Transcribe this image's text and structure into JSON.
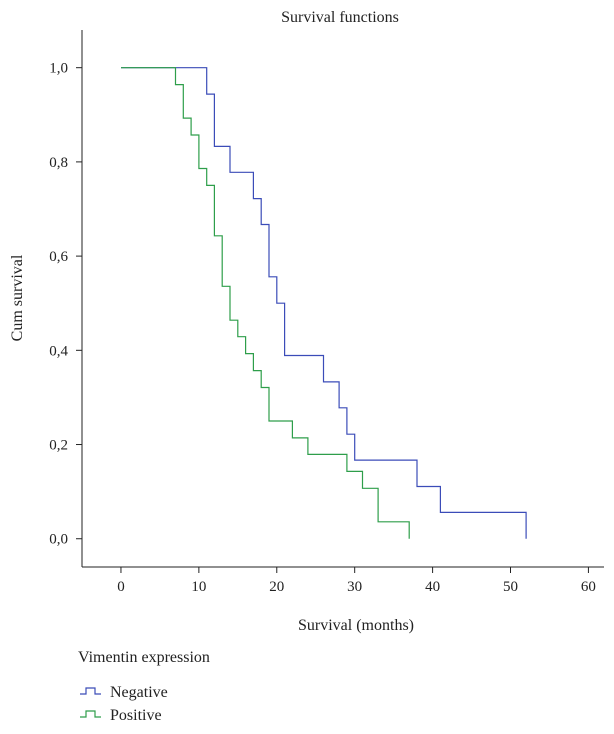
{
  "chart_data": {
    "type": "line",
    "title": "Survival functions",
    "xlabel": "Survival (months)",
    "ylabel": "Cum survival",
    "xlim": [
      -5,
      62
    ],
    "ylim": [
      -0.06,
      1.08
    ],
    "x_ticks": [
      0,
      10,
      20,
      30,
      40,
      50,
      60
    ],
    "x_tick_labels": [
      "0",
      "10",
      "20",
      "30",
      "40",
      "50",
      "60"
    ],
    "y_ticks": [
      0,
      0.2,
      0.4,
      0.6,
      0.8,
      1.0
    ],
    "y_tick_labels": [
      "0,0",
      "0,2",
      "0,4",
      "0,6",
      "0,8",
      "1,0"
    ],
    "grid": false,
    "legend": {
      "title": "Vimentin expression",
      "placement": "bottom-left"
    },
    "series": [
      {
        "name": "Negative",
        "color": "#3b4cb8",
        "step": "post",
        "x": [
          0,
          11,
          12,
          14,
          17,
          18,
          19,
          20,
          21,
          26,
          28,
          29,
          30,
          38,
          41,
          52
        ],
        "y": [
          1.0,
          0.944,
          0.833,
          0.778,
          0.722,
          0.667,
          0.556,
          0.5,
          0.389,
          0.333,
          0.278,
          0.222,
          0.167,
          0.111,
          0.056,
          0.0
        ]
      },
      {
        "name": "Positive",
        "color": "#2e9e4a",
        "step": "post",
        "x": [
          0,
          7,
          8,
          9,
          10,
          11,
          12,
          13,
          14,
          15,
          16,
          17,
          18,
          19,
          22,
          24,
          29,
          31,
          33,
          37
        ],
        "y": [
          1.0,
          0.964,
          0.893,
          0.857,
          0.786,
          0.75,
          0.643,
          0.536,
          0.464,
          0.429,
          0.393,
          0.357,
          0.321,
          0.25,
          0.214,
          0.179,
          0.143,
          0.107,
          0.036,
          0.0
        ]
      }
    ]
  }
}
